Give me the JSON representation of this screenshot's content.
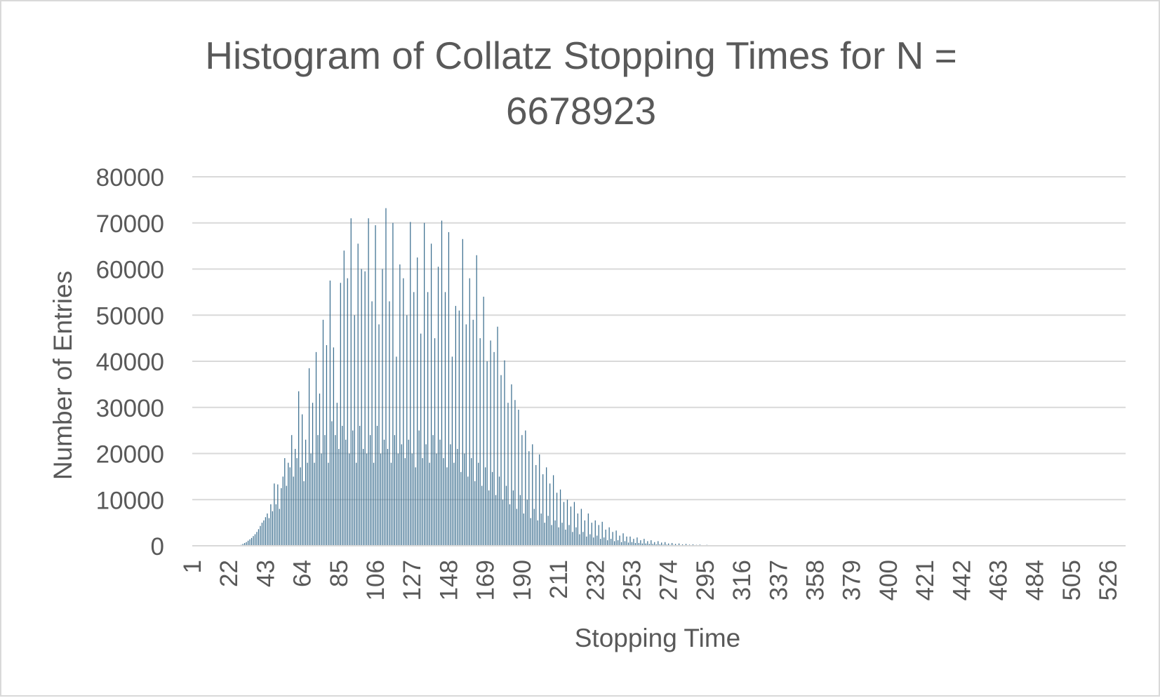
{
  "chart_data": {
    "type": "bar",
    "title_line1": "Histogram of Collatz Stopping Times for N =",
    "title_line2": "6678923",
    "xlabel": "Stopping Time",
    "ylabel": "Number of Entries",
    "ylim": [
      0,
      80000
    ],
    "yticks": [
      "0",
      "10000",
      "20000",
      "30000",
      "40000",
      "50000",
      "60000",
      "70000",
      "80000"
    ],
    "xticks": [
      "1",
      "22",
      "43",
      "64",
      "85",
      "106",
      "127",
      "148",
      "169",
      "190",
      "211",
      "232",
      "253",
      "274",
      "295",
      "316",
      "337",
      "358",
      "379",
      "400",
      "421",
      "442",
      "463",
      "484",
      "505",
      "526"
    ],
    "x_range": [
      1,
      536
    ],
    "grid": "horizontal",
    "bar_color": "#3b6e8f",
    "grid_color": "#d9d9d9",
    "text_color": "#595959",
    "series": [
      {
        "values": [
          [
            29,
            200
          ],
          [
            30,
            400
          ],
          [
            31,
            600
          ],
          [
            32,
            800
          ],
          [
            33,
            1100
          ],
          [
            34,
            1400
          ],
          [
            35,
            1700
          ],
          [
            36,
            2100
          ],
          [
            37,
            2500
          ],
          [
            38,
            3000
          ],
          [
            39,
            3600
          ],
          [
            40,
            4300
          ],
          [
            41,
            5000
          ],
          [
            42,
            5500
          ],
          [
            43,
            6200
          ],
          [
            44,
            7000
          ],
          [
            45,
            6000
          ],
          [
            46,
            9000
          ],
          [
            47,
            7500
          ],
          [
            48,
            13500
          ],
          [
            49,
            9000
          ],
          [
            50,
            13300
          ],
          [
            51,
            8000
          ],
          [
            52,
            12500
          ],
          [
            53,
            15000
          ],
          [
            54,
            19000
          ],
          [
            55,
            13000
          ],
          [
            56,
            18000
          ],
          [
            57,
            17000
          ],
          [
            58,
            24000
          ],
          [
            59,
            15000
          ],
          [
            60,
            21000
          ],
          [
            61,
            19000
          ],
          [
            62,
            33500
          ],
          [
            63,
            17000
          ],
          [
            64,
            28500
          ],
          [
            65,
            14000
          ],
          [
            66,
            23000
          ],
          [
            67,
            18000
          ],
          [
            68,
            38500
          ],
          [
            69,
            20000
          ],
          [
            70,
            31000
          ],
          [
            71,
            18000
          ],
          [
            72,
            42000
          ],
          [
            73,
            24000
          ],
          [
            74,
            33000
          ],
          [
            75,
            20000
          ],
          [
            76,
            49000
          ],
          [
            77,
            24000
          ],
          [
            78,
            43500
          ],
          [
            79,
            18000
          ],
          [
            80,
            57500
          ],
          [
            81,
            27000
          ],
          [
            82,
            43000
          ],
          [
            83,
            24000
          ],
          [
            84,
            31000
          ],
          [
            85,
            21000
          ],
          [
            86,
            57000
          ],
          [
            87,
            26000
          ],
          [
            88,
            64000
          ],
          [
            89,
            23000
          ],
          [
            90,
            58000
          ],
          [
            91,
            20000
          ],
          [
            92,
            71000
          ],
          [
            93,
            25000
          ],
          [
            94,
            50000
          ],
          [
            95,
            18000
          ],
          [
            96,
            65500
          ],
          [
            97,
            26000
          ],
          [
            98,
            60000
          ],
          [
            99,
            21000
          ],
          [
            100,
            59500
          ],
          [
            101,
            20000
          ],
          [
            102,
            71000
          ],
          [
            103,
            24000
          ],
          [
            104,
            53000
          ],
          [
            105,
            18000
          ],
          [
            106,
            69500
          ],
          [
            107,
            26000
          ],
          [
            108,
            48000
          ],
          [
            109,
            20000
          ],
          [
            110,
            60000
          ],
          [
            111,
            23000
          ],
          [
            112,
            73200
          ],
          [
            113,
            21000
          ],
          [
            114,
            53000
          ],
          [
            115,
            18000
          ],
          [
            116,
            70000
          ],
          [
            117,
            24000
          ],
          [
            118,
            41000
          ],
          [
            119,
            20000
          ],
          [
            120,
            61000
          ],
          [
            121,
            22000
          ],
          [
            122,
            58000
          ],
          [
            123,
            19000
          ],
          [
            124,
            50000
          ],
          [
            125,
            23000
          ],
          [
            126,
            70200
          ],
          [
            127,
            20000
          ],
          [
            128,
            55000
          ],
          [
            129,
            17000
          ],
          [
            130,
            62500
          ],
          [
            131,
            25000
          ],
          [
            132,
            46000
          ],
          [
            133,
            19000
          ],
          [
            134,
            70000
          ],
          [
            135,
            22000
          ],
          [
            136,
            55000
          ],
          [
            137,
            18000
          ],
          [
            138,
            65500
          ],
          [
            139,
            24000
          ],
          [
            140,
            45000
          ],
          [
            141,
            20000
          ],
          [
            142,
            60500
          ],
          [
            143,
            23000
          ],
          [
            144,
            70500
          ],
          [
            145,
            19000
          ],
          [
            146,
            55000
          ],
          [
            147,
            17000
          ],
          [
            148,
            68000
          ],
          [
            149,
            22000
          ],
          [
            150,
            41000
          ],
          [
            151,
            18000
          ],
          [
            152,
            52000
          ],
          [
            153,
            21000
          ],
          [
            154,
            51000
          ],
          [
            155,
            16000
          ],
          [
            156,
            66500
          ],
          [
            157,
            20000
          ],
          [
            158,
            48000
          ],
          [
            159,
            15000
          ],
          [
            160,
            58000
          ],
          [
            161,
            19000
          ],
          [
            162,
            49000
          ],
          [
            163,
            14000
          ],
          [
            164,
            63000
          ],
          [
            165,
            18000
          ],
          [
            166,
            45000
          ],
          [
            167,
            13000
          ],
          [
            168,
            54000
          ],
          [
            169,
            17000
          ],
          [
            170,
            40000
          ],
          [
            171,
            12000
          ],
          [
            172,
            44500
          ],
          [
            173,
            16000
          ],
          [
            174,
            42000
          ],
          [
            175,
            11000
          ],
          [
            176,
            47500
          ],
          [
            177,
            15000
          ],
          [
            178,
            37000
          ],
          [
            179,
            10000
          ],
          [
            180,
            40200
          ],
          [
            181,
            13000
          ],
          [
            182,
            31000
          ],
          [
            183,
            9000
          ],
          [
            184,
            35000
          ],
          [
            185,
            12000
          ],
          [
            186,
            31600
          ],
          [
            187,
            8000
          ],
          [
            188,
            29500
          ],
          [
            189,
            11000
          ],
          [
            190,
            24000
          ],
          [
            191,
            7000
          ],
          [
            192,
            25000
          ],
          [
            193,
            10000
          ],
          [
            194,
            20500
          ],
          [
            195,
            6000
          ],
          [
            196,
            22000
          ],
          [
            197,
            8000
          ],
          [
            198,
            17500
          ],
          [
            199,
            5500
          ],
          [
            200,
            19800
          ],
          [
            201,
            7000
          ],
          [
            202,
            15500
          ],
          [
            203,
            5000
          ],
          [
            204,
            17000
          ],
          [
            205,
            6500
          ],
          [
            206,
            13500
          ],
          [
            207,
            4500
          ],
          [
            208,
            15300
          ],
          [
            209,
            5500
          ],
          [
            210,
            11500
          ],
          [
            211,
            4000
          ],
          [
            212,
            12200
          ],
          [
            213,
            5000
          ],
          [
            214,
            9500
          ],
          [
            215,
            3500
          ],
          [
            216,
            10000
          ],
          [
            217,
            4500
          ],
          [
            218,
            8500
          ],
          [
            219,
            3000
          ],
          [
            220,
            9500
          ],
          [
            221,
            4000
          ],
          [
            222,
            7000
          ],
          [
            223,
            2500
          ],
          [
            224,
            8000
          ],
          [
            225,
            3000
          ],
          [
            226,
            5500
          ],
          [
            227,
            2000
          ],
          [
            228,
            7000
          ],
          [
            229,
            2500
          ],
          [
            230,
            5000
          ],
          [
            231,
            1800
          ],
          [
            232,
            5500
          ],
          [
            233,
            2200
          ],
          [
            234,
            4500
          ],
          [
            235,
            1500
          ],
          [
            236,
            5200
          ],
          [
            237,
            1800
          ],
          [
            238,
            3500
          ],
          [
            239,
            1200
          ],
          [
            240,
            4000
          ],
          [
            241,
            1500
          ],
          [
            242,
            3000
          ],
          [
            243,
            1000
          ],
          [
            244,
            3300
          ],
          [
            245,
            1200
          ],
          [
            246,
            2200
          ],
          [
            247,
            800
          ],
          [
            248,
            2700
          ],
          [
            249,
            1000
          ],
          [
            250,
            2000
          ],
          [
            251,
            700
          ],
          [
            252,
            2000
          ],
          [
            253,
            800
          ],
          [
            254,
            1500
          ],
          [
            255,
            600
          ],
          [
            256,
            1800
          ],
          [
            257,
            600
          ],
          [
            258,
            1200
          ],
          [
            259,
            500
          ],
          [
            260,
            1500
          ],
          [
            261,
            500
          ],
          [
            262,
            1000
          ],
          [
            263,
            400
          ],
          [
            264,
            1200
          ],
          [
            265,
            400
          ],
          [
            266,
            800
          ],
          [
            267,
            300
          ],
          [
            268,
            1000
          ],
          [
            269,
            300
          ],
          [
            270,
            700
          ],
          [
            271,
            250
          ],
          [
            272,
            800
          ],
          [
            273,
            250
          ],
          [
            274,
            500
          ],
          [
            275,
            200
          ],
          [
            276,
            600
          ],
          [
            277,
            200
          ],
          [
            278,
            400
          ],
          [
            279,
            150
          ],
          [
            280,
            500
          ],
          [
            281,
            150
          ],
          [
            282,
            300
          ],
          [
            283,
            100
          ],
          [
            284,
            400
          ],
          [
            285,
            100
          ],
          [
            286,
            250
          ],
          [
            287,
            80
          ],
          [
            288,
            300
          ],
          [
            289,
            80
          ],
          [
            290,
            200
          ],
          [
            291,
            60
          ],
          [
            292,
            250
          ],
          [
            293,
            60
          ],
          [
            294,
            150
          ],
          [
            295,
            50
          ],
          [
            296,
            200
          ],
          [
            297,
            40
          ],
          [
            298,
            120
          ],
          [
            299,
            30
          ],
          [
            300,
            150
          ],
          [
            301,
            30
          ],
          [
            302,
            100
          ],
          [
            303,
            20
          ],
          [
            304,
            120
          ],
          [
            305,
            20
          ],
          [
            306,
            80
          ],
          [
            307,
            20
          ],
          [
            308,
            100
          ],
          [
            309,
            15
          ],
          [
            310,
            60
          ],
          [
            311,
            10
          ],
          [
            312,
            80
          ],
          [
            313,
            10
          ],
          [
            314,
            40
          ],
          [
            315,
            8
          ],
          [
            316,
            50
          ],
          [
            317,
            8
          ],
          [
            318,
            30
          ],
          [
            319,
            5
          ],
          [
            320,
            40
          ],
          [
            322,
            20
          ],
          [
            324,
            30
          ],
          [
            326,
            15
          ],
          [
            328,
            20
          ],
          [
            330,
            10
          ],
          [
            332,
            15
          ],
          [
            334,
            8
          ],
          [
            336,
            10
          ],
          [
            338,
            6
          ],
          [
            340,
            8
          ],
          [
            342,
            5
          ],
          [
            344,
            6
          ],
          [
            346,
            4
          ],
          [
            348,
            5
          ],
          [
            350,
            3
          ],
          [
            352,
            4
          ],
          [
            354,
            3
          ],
          [
            356,
            2
          ],
          [
            358,
            2
          ],
          [
            360,
            2
          ],
          [
            362,
            1
          ],
          [
            364,
            1
          ],
          [
            366,
            1
          ]
        ]
      }
    ]
  }
}
